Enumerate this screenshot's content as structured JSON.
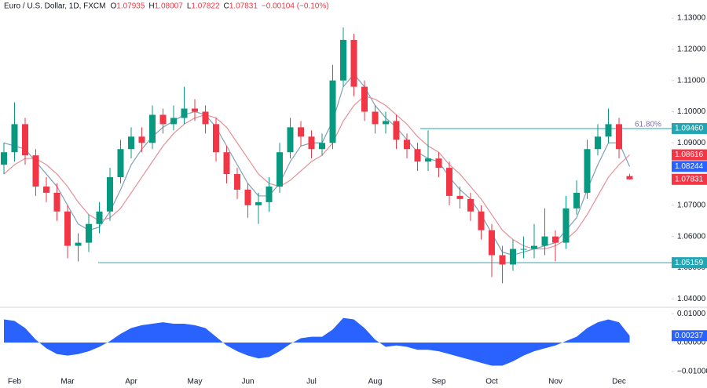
{
  "header": {
    "title": "Euro / U.S. Dollar, 1D, FXCM",
    "fields": [
      {
        "prefix": "O",
        "value": "1.07935"
      },
      {
        "prefix": "H",
        "value": "1.08007"
      },
      {
        "prefix": "L",
        "value": "1.07822"
      },
      {
        "prefix": "C",
        "value": "1.07831"
      }
    ],
    "change": "−0.00104 (−0.10%)"
  },
  "chart_data": {
    "type": "candlestick",
    "up_color": "#089981",
    "down_color": "#f23645",
    "categories": [
      null,
      "Feb",
      null,
      null,
      null,
      null,
      "Mar",
      null,
      null,
      null,
      null,
      null,
      "Apr",
      null,
      null,
      null,
      null,
      null,
      "May",
      null,
      null,
      null,
      null,
      "Jun",
      null,
      null,
      null,
      null,
      null,
      "Jul",
      null,
      null,
      null,
      null,
      null,
      "Aug",
      null,
      null,
      null,
      null,
      null,
      "Sep",
      null,
      null,
      null,
      null,
      "Oct",
      null,
      null,
      null,
      null,
      null,
      "Nov",
      null,
      null,
      null,
      null,
      null,
      "Dec",
      null
    ],
    "open": [
      1.083,
      1.087,
      1.096,
      1.086,
      1.076,
      1.074,
      1.068,
      1.057,
      1.058,
      1.064,
      1.068,
      1.079,
      1.088,
      1.092,
      1.09,
      1.099,
      1.096,
      1.098,
      1.101,
      1.1,
      1.096,
      1.087,
      1.08,
      1.075,
      1.07,
      1.071,
      1.076,
      1.087,
      1.095,
      1.092,
      1.088,
      1.09,
      1.11,
      1.123,
      1.108,
      1.1,
      1.096,
      1.097,
      1.091,
      1.088,
      1.084,
      1.085,
      1.082,
      1.073,
      1.072,
      1.068,
      1.062,
      1.054,
      1.051,
      1.056,
      1.056,
      1.057,
      1.06,
      1.058,
      1.069,
      1.074,
      1.088,
      1.092,
      1.096,
      1.07935
    ],
    "high": [
      1.09,
      1.103,
      1.098,
      1.088,
      1.079,
      1.077,
      1.07,
      1.061,
      1.067,
      1.071,
      1.082,
      1.091,
      1.095,
      1.095,
      1.102,
      1.101,
      1.102,
      1.108,
      1.104,
      1.102,
      1.098,
      1.089,
      1.082,
      1.077,
      1.074,
      1.079,
      1.09,
      1.098,
      1.097,
      1.094,
      1.093,
      1.115,
      1.127,
      1.125,
      1.11,
      1.102,
      1.1,
      1.099,
      1.093,
      1.09,
      1.094,
      1.087,
      1.084,
      1.076,
      1.074,
      1.07,
      1.064,
      1.057,
      1.059,
      1.06,
      1.064,
      1.069,
      1.062,
      1.073,
      1.078,
      1.091,
      1.096,
      1.101,
      1.098,
      1.08007
    ],
    "low": [
      1.08,
      1.084,
      1.083,
      1.073,
      1.071,
      1.065,
      1.053,
      1.052,
      1.055,
      1.061,
      1.065,
      1.077,
      1.085,
      1.087,
      1.088,
      1.093,
      1.094,
      1.096,
      1.097,
      1.093,
      1.084,
      1.077,
      1.072,
      1.066,
      1.064,
      1.068,
      1.074,
      1.085,
      1.089,
      1.085,
      1.086,
      1.088,
      1.108,
      1.105,
      1.097,
      1.093,
      1.093,
      1.088,
      1.085,
      1.081,
      1.081,
      1.079,
      1.07,
      1.069,
      1.065,
      1.059,
      1.047,
      1.045,
      1.049,
      1.053,
      1.053,
      1.054,
      1.052,
      1.056,
      1.067,
      1.072,
      1.086,
      1.09,
      1.085,
      1.07822
    ],
    "close": [
      1.087,
      1.096,
      1.086,
      1.076,
      1.074,
      1.068,
      1.057,
      1.058,
      1.064,
      1.068,
      1.079,
      1.088,
      1.092,
      1.09,
      1.099,
      1.096,
      1.098,
      1.101,
      1.1,
      1.096,
      1.087,
      1.08,
      1.075,
      1.07,
      1.071,
      1.076,
      1.087,
      1.095,
      1.092,
      1.088,
      1.09,
      1.11,
      1.123,
      1.108,
      1.1,
      1.096,
      1.097,
      1.091,
      1.088,
      1.084,
      1.085,
      1.082,
      1.073,
      1.072,
      1.068,
      1.062,
      1.054,
      1.051,
      1.056,
      1.056,
      1.057,
      1.06,
      1.058,
      1.069,
      1.074,
      1.088,
      1.092,
      1.096,
      1.088,
      1.07831
    ],
    "last_label": "1.07831",
    "lines": [
      {
        "color": "#7fa0b8",
        "last_label": "1.08244",
        "label_color": "#2962ff",
        "values": [
          1.09,
          1.089,
          1.088,
          1.084,
          1.08,
          1.076,
          1.07,
          1.064,
          1.062,
          1.063,
          1.068,
          1.075,
          1.083,
          1.088,
          1.092,
          1.095,
          1.097,
          1.099,
          1.1,
          1.099,
          1.095,
          1.089,
          1.083,
          1.077,
          1.073,
          1.073,
          1.077,
          1.084,
          1.089,
          1.09,
          1.09,
          1.097,
          1.108,
          1.112,
          1.108,
          1.102,
          1.098,
          1.095,
          1.091,
          1.087,
          1.085,
          1.084,
          1.079,
          1.075,
          1.072,
          1.067,
          1.061,
          1.055,
          1.054,
          1.055,
          1.056,
          1.057,
          1.058,
          1.062,
          1.066,
          1.075,
          1.083,
          1.09,
          1.09,
          1.08244
        ]
      },
      {
        "color": "#e58f98",
        "last_label": "1.08616",
        "label_color": "#f23645",
        "values": [
          1.08,
          1.083,
          1.085,
          1.085,
          1.083,
          1.08,
          1.076,
          1.071,
          1.067,
          1.065,
          1.066,
          1.069,
          1.074,
          1.079,
          1.084,
          1.089,
          1.093,
          1.096,
          1.098,
          1.099,
          1.098,
          1.095,
          1.09,
          1.085,
          1.08,
          1.077,
          1.076,
          1.078,
          1.081,
          1.084,
          1.086,
          1.09,
          1.097,
          1.102,
          1.105,
          1.104,
          1.102,
          1.099,
          1.096,
          1.092,
          1.089,
          1.087,
          1.083,
          1.08,
          1.076,
          1.072,
          1.067,
          1.062,
          1.059,
          1.057,
          1.056,
          1.056,
          1.057,
          1.059,
          1.062,
          1.067,
          1.073,
          1.079,
          1.083,
          1.08616
        ]
      }
    ],
    "levels": [
      {
        "value": 1.0946,
        "value_label": "1.09460",
        "text": "61.80%",
        "color": "#22a6b3"
      },
      {
        "value": 1.05159,
        "value_label": "1.05159",
        "color": "#22a6b3"
      }
    ],
    "ylim": [
      1.0373,
      1.1358
    ],
    "yticks": [
      {
        "value": 1.13,
        "label": "1.13000"
      },
      {
        "value": 1.12,
        "label": "1.12000"
      },
      {
        "value": 1.11,
        "label": "1.11000"
      },
      {
        "value": 1.1,
        "label": "1.10000"
      },
      {
        "value": 1.09,
        "label": "1.09000"
      },
      {
        "value": 1.07,
        "label": "1.07000"
      },
      {
        "value": 1.06,
        "label": "1.06000"
      },
      {
        "value": 1.05,
        "label": "1.05000"
      },
      {
        "value": 1.04,
        "label": "1.04000"
      }
    ],
    "oscillator": {
      "color": "#2962ff",
      "last_label": "0.00237",
      "ylim": [
        -0.0122,
        0.0122
      ],
      "yticks": [
        {
          "value": 0.01,
          "label": "0.01000"
        },
        {
          "value": 0,
          "label": "0.00000"
        },
        {
          "value": -0.01,
          "label": "−0.01000"
        }
      ],
      "values": [
        0.008,
        0.0075,
        0.005,
        0.001,
        -0.002,
        -0.004,
        -0.0045,
        -0.004,
        -0.003,
        -0.0015,
        0.0005,
        0.003,
        0.005,
        0.006,
        0.0065,
        0.007,
        0.0065,
        0.0065,
        0.006,
        0.005,
        0.002,
        -0.001,
        -0.003,
        -0.0045,
        -0.0055,
        -0.005,
        -0.003,
        -0.0005,
        0.0015,
        0.002,
        0.002,
        0.0045,
        0.0085,
        0.008,
        0.005,
        0.001,
        -0.0015,
        -0.001,
        -0.0015,
        -0.0025,
        -0.0025,
        -0.003,
        -0.004,
        -0.005,
        -0.006,
        -0.007,
        -0.008,
        -0.008,
        -0.0065,
        -0.0045,
        -0.003,
        -0.002,
        -0.001,
        0.0005,
        0.002,
        0.005,
        0.007,
        0.008,
        0.007,
        0.00237
      ]
    }
  }
}
